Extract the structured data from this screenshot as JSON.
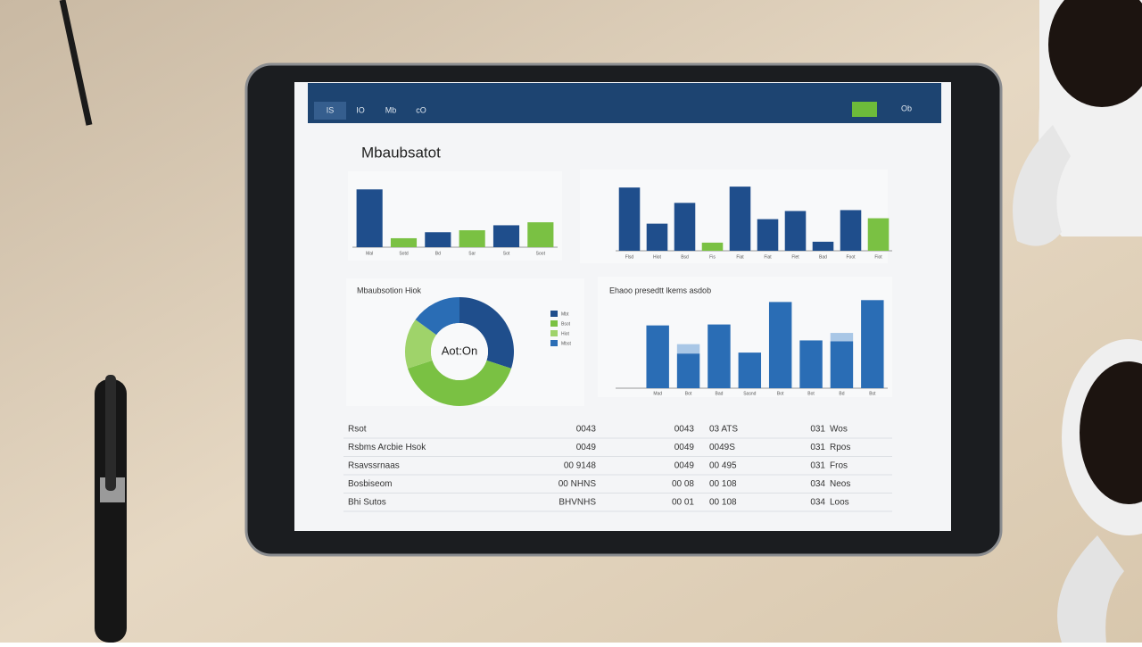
{
  "header": {
    "nav": [
      "IS",
      "IO",
      "Mb",
      "cO"
    ],
    "button": "Ob",
    "title": "Mbaubsatot"
  },
  "chart_data": [
    {
      "type": "bar",
      "categories": [
        "Mal",
        "Sotd",
        "Bd",
        "Sar",
        "Sot",
        "Soot"
      ],
      "values": [
        58,
        9,
        15,
        17,
        22,
        25
      ],
      "colors": [
        "#1f4e8c",
        "#7ac143",
        "#1f4e8c",
        "#7ac143",
        "#1f4e8c",
        "#7ac143"
      ],
      "ylim": [
        0,
        60
      ]
    },
    {
      "type": "bar",
      "categories": [
        "Flsd",
        "Hiot",
        "Bsd",
        "Fis",
        "Fiat",
        "Fiat",
        "Flet",
        "Bad",
        "Foot",
        "Fiot"
      ],
      "values": [
        70,
        30,
        53,
        9,
        71,
        35,
        44,
        10,
        45,
        36
      ],
      "colors": [
        "#1f4e8c",
        "#1f4e8c",
        "#1f4e8c",
        "#7ac143",
        "#1f4e8c",
        "#1f4e8c",
        "#1f4e8c",
        "#1f4e8c",
        "#1f4e8c",
        "#7ac143"
      ],
      "ylim": [
        0,
        80
      ]
    },
    {
      "type": "pie",
      "title": "Mbaubsotion Hiok",
      "center": "Aot:On",
      "series": [
        {
          "name": "Mbt",
          "color": "#1f4e8c",
          "value": 30
        },
        {
          "name": "Bsot",
          "color": "#7ac143",
          "value": 40
        },
        {
          "name": "Hiot",
          "color": "#9fd36a",
          "value": 15
        },
        {
          "name": "Mbst",
          "color": "#2a6db5",
          "value": 15
        }
      ]
    },
    {
      "type": "stacked-bar",
      "title": "Ehaoo presedtt lkems asdob",
      "categories": [
        "Mad",
        "Bot",
        "Bad",
        "Sasnd",
        "Bot",
        "Bot",
        "Bd",
        "Bst"
      ],
      "series": [
        {
          "color": "#2a6db5",
          "values": [
            67,
            37,
            68,
            38,
            92,
            51,
            50,
            94
          ]
        },
        {
          "color": "#a9c7e6",
          "values": [
            0,
            10,
            0,
            0,
            0,
            0,
            9,
            0
          ]
        }
      ],
      "ylim": [
        0,
        100
      ]
    }
  ],
  "table": {
    "rows": [
      [
        "Rsot",
        "0043",
        "0043",
        "03 ATS",
        "031",
        "Wos"
      ],
      [
        "Rsbms Arcbie Hsok",
        "0049",
        "0049",
        "0049S",
        "031",
        "Rpos"
      ],
      [
        "Rsavssrnaas",
        "00 9148",
        "0049",
        "00 495",
        "031",
        "Fros"
      ],
      [
        "Bosbiseom",
        "00 NHNS",
        "00 08",
        "00 108",
        "034",
        "Neos"
      ],
      [
        "Bhi Sutos",
        "BHVNHS",
        "00 01",
        "00 108",
        "034",
        "Loos"
      ]
    ]
  }
}
